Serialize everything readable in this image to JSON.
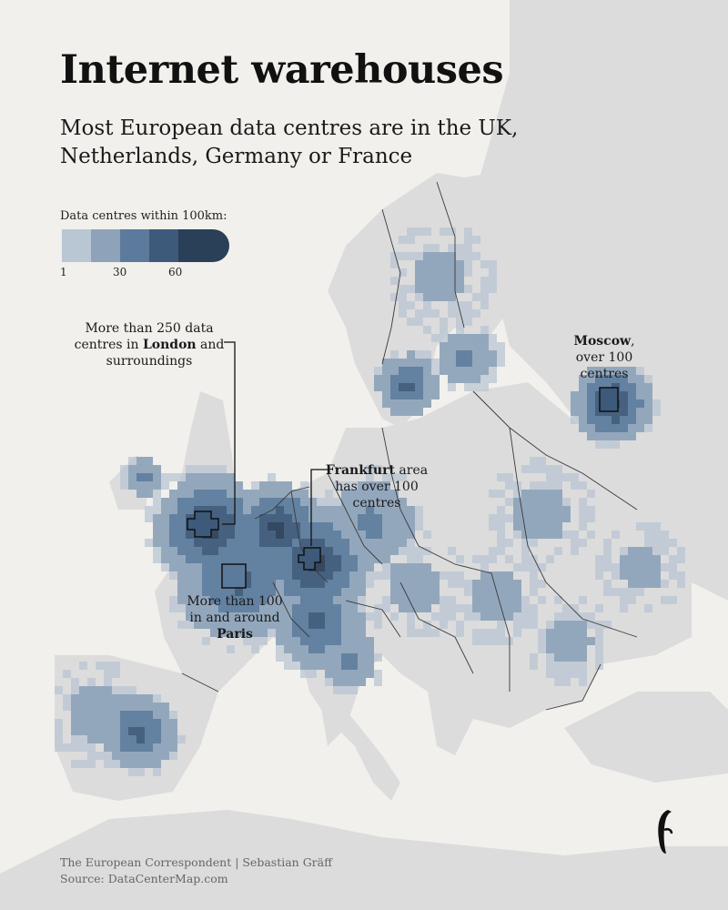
{
  "title": "Internet warehouses",
  "subtitle": "Most European data centres are in the UK, Netherlands, Germany or France",
  "legend": {
    "title": "Data centres within 100km:",
    "colors": [
      "#b9c6d3",
      "#8ea3b9",
      "#5c7b9c",
      "#3d5a7a",
      "#2a3f58"
    ],
    "ticks": [
      "1",
      "30",
      "60"
    ]
  },
  "annotations": {
    "london": {
      "pre": "More than 250 data centres in ",
      "bold": "London",
      "post": " and surroundings"
    },
    "frankfurt": {
      "bold": "Frankfurt",
      "post": " area has over 100 centres"
    },
    "paris": {
      "pre": "More than 100 in and around ",
      "bold": "Paris"
    },
    "moscow": {
      "bold": "Moscow",
      "post": ", over 100 centres"
    }
  },
  "credits": {
    "line1": "The European Correspondent | Sebastian Gräff",
    "line2": "Source: DataCenterMap.com"
  },
  "colors": {
    "background": "#f2f0ec",
    "land": "#dcdcdc",
    "border": "#3a3a3a"
  },
  "logo_icon": "european-correspondent-logo"
}
